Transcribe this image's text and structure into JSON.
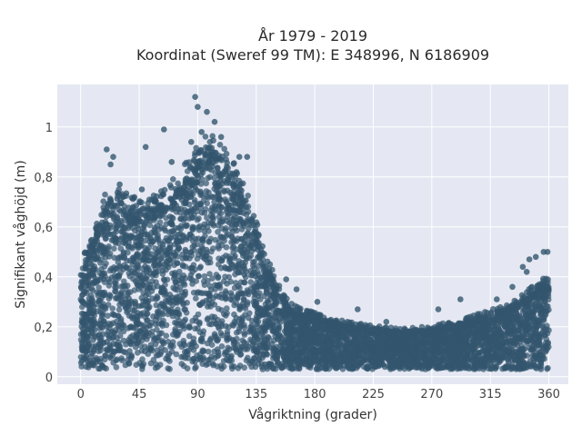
{
  "chart_data": {
    "type": "scatter",
    "title_line1": "År 1979 - 2019",
    "title_line2": "Koordinat (Sweref 99 TM): E 348996, N 6186909",
    "xlabel": "Vågriktning (grader)",
    "ylabel": "Signifikant våghöjd (m)",
    "xlim": [
      -18,
      375
    ],
    "ylim": [
      -0.03,
      1.17
    ],
    "x_ticks": [
      0,
      45,
      90,
      135,
      180,
      225,
      270,
      315,
      360
    ],
    "x_tick_labels": [
      "0",
      "45",
      "90",
      "135",
      "180",
      "225",
      "270",
      "315",
      "360"
    ],
    "y_ticks": [
      0,
      0.2,
      0.4,
      0.6,
      0.8,
      1
    ],
    "y_tick_labels": [
      "0",
      "0,2",
      "0,4",
      "0,6",
      "0,8",
      "1"
    ],
    "grid": true,
    "marker_color": "#33566e",
    "background_color": "#e5e8f2",
    "envelope": {
      "x": [
        0,
        10,
        20,
        30,
        45,
        60,
        75,
        90,
        100,
        110,
        120,
        130,
        140,
        150,
        160,
        170,
        180,
        200,
        225,
        250,
        270,
        290,
        310,
        330,
        345,
        360
      ],
      "y_max": [
        0.42,
        0.56,
        0.7,
        0.7,
        0.66,
        0.68,
        0.76,
        0.88,
        0.9,
        0.86,
        0.78,
        0.66,
        0.5,
        0.36,
        0.28,
        0.25,
        0.24,
        0.21,
        0.19,
        0.18,
        0.19,
        0.21,
        0.24,
        0.28,
        0.33,
        0.38
      ]
    },
    "outliers": [
      {
        "x": 88,
        "y": 1.12
      },
      {
        "x": 90,
        "y": 1.08
      },
      {
        "x": 97,
        "y": 1.06
      },
      {
        "x": 103,
        "y": 1.02
      },
      {
        "x": 64,
        "y": 0.99
      },
      {
        "x": 93,
        "y": 0.98
      },
      {
        "x": 108,
        "y": 0.96
      },
      {
        "x": 85,
        "y": 0.94
      },
      {
        "x": 20,
        "y": 0.91
      },
      {
        "x": 25,
        "y": 0.88
      },
      {
        "x": 50,
        "y": 0.92
      },
      {
        "x": 70,
        "y": 0.86
      },
      {
        "x": 122,
        "y": 0.88
      },
      {
        "x": 128,
        "y": 0.88
      },
      {
        "x": 23,
        "y": 0.85
      },
      {
        "x": 30,
        "y": 0.77
      },
      {
        "x": 47,
        "y": 0.75
      },
      {
        "x": 158,
        "y": 0.39
      },
      {
        "x": 166,
        "y": 0.35
      },
      {
        "x": 182,
        "y": 0.3
      },
      {
        "x": 213,
        "y": 0.27
      },
      {
        "x": 235,
        "y": 0.22
      },
      {
        "x": 275,
        "y": 0.27
      },
      {
        "x": 292,
        "y": 0.31
      },
      {
        "x": 320,
        "y": 0.31
      },
      {
        "x": 332,
        "y": 0.36
      },
      {
        "x": 340,
        "y": 0.44
      },
      {
        "x": 345,
        "y": 0.47
      },
      {
        "x": 350,
        "y": 0.48
      },
      {
        "x": 356,
        "y": 0.5
      },
      {
        "x": 359,
        "y": 0.5
      },
      {
        "x": 343,
        "y": 0.42
      }
    ]
  }
}
